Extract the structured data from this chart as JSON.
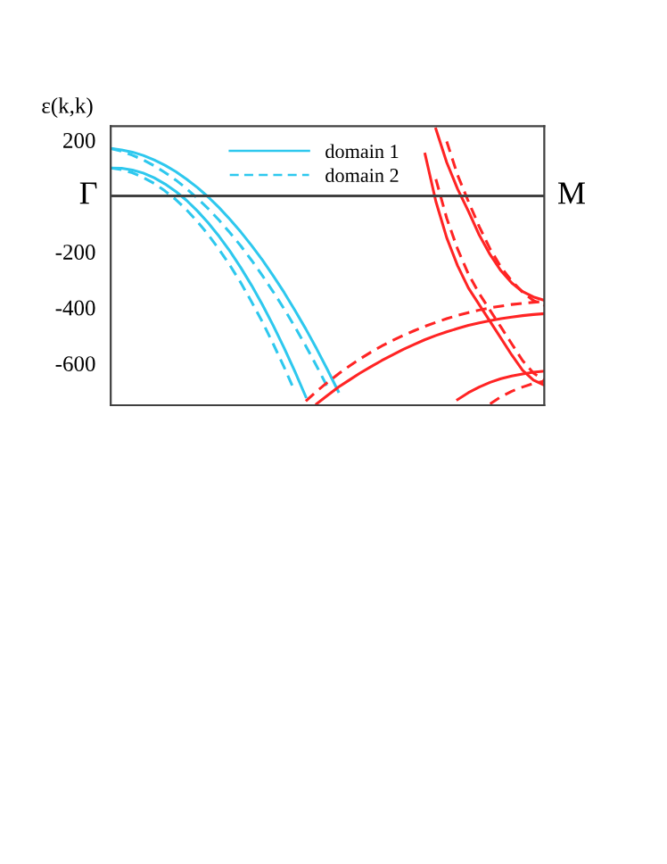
{
  "chart_data": {
    "type": "line",
    "ylabel": "ε(k,k)",
    "annotations": [
      "Γ",
      "M"
    ],
    "categories": [
      null,
      null,
      null,
      null,
      null,
      null,
      null,
      null,
      null,
      null,
      null,
      null,
      null,
      null,
      null,
      null,
      null,
      null,
      null,
      null,
      null,
      null,
      null,
      null,
      null,
      null,
      null,
      null,
      null,
      null,
      null,
      null,
      null,
      null,
      null,
      null,
      null,
      null,
      null,
      null,
      null
    ],
    "ylim": [
      -750,
      250
    ],
    "yticks": [
      200,
      -200,
      -400,
      -600
    ],
    "grid": false,
    "legend": "top",
    "tick_labels": "y",
    "ref_lines": [
      {
        "axis": "y",
        "value": 0,
        "color": "#404040"
      }
    ],
    "series": [
      {
        "name": "domain 1",
        "color": "#2ec8ee",
        "line_style": "solid",
        "values": [
          170,
          165,
          157,
          145,
          129,
          110,
          87,
          60,
          30,
          -4,
          -42,
          -84,
          -129,
          -178,
          -230,
          -287,
          -346,
          -410,
          -477,
          -548,
          -623,
          -701,
          null,
          null,
          null,
          null,
          null,
          null,
          null,
          null,
          null,
          null,
          null,
          null,
          null,
          null,
          null,
          null,
          null,
          null,
          null
        ]
      },
      {
        "name": "domain 2",
        "color": "#2ec8ee",
        "line_style": "dashed",
        "values": [
          170,
          160,
          146,
          129,
          108,
          84,
          57,
          26,
          -9,
          -46,
          -87,
          -132,
          -179,
          -231,
          -286,
          -344,
          -405,
          -470,
          -538,
          -610,
          -685,
          null,
          null,
          null,
          null,
          null,
          null,
          null,
          null,
          null,
          null,
          null,
          null,
          null,
          null,
          null,
          null,
          null,
          null,
          null,
          null
        ]
      },
      {
        "color": "#2ec8ee",
        "line_style": "solid",
        "values": [
          100,
          99,
          93,
          82,
          65,
          43,
          16,
          -16,
          -54,
          -97,
          -145,
          -198,
          -257,
          -321,
          -390,
          -465,
          -545,
          -630,
          -720,
          null,
          null,
          null,
          null,
          null,
          null,
          null,
          null,
          null,
          null,
          null,
          null,
          null,
          null,
          null,
          null,
          null,
          null,
          null,
          null,
          null,
          null
        ]
      },
      {
        "color": "#2ec8ee",
        "line_style": "dashed",
        "values": [
          100,
          94,
          83,
          66,
          45,
          18,
          -13,
          -50,
          -92,
          -139,
          -192,
          -249,
          -311,
          -380,
          -452,
          -531,
          -614,
          -702,
          null,
          null,
          null,
          null,
          null,
          null,
          null,
          null,
          null,
          null,
          null,
          null,
          null,
          null,
          null,
          null,
          null,
          null,
          null,
          null,
          null,
          null,
          null
        ]
      },
      {
        "color": "#ff2424",
        "line_style": "solid",
        "values": [
          null,
          null,
          null,
          null,
          null,
          null,
          null,
          null,
          null,
          null,
          null,
          null,
          null,
          null,
          null,
          null,
          null,
          null,
          null,
          -745,
          -715,
          -685,
          -660,
          -635,
          -612,
          -590,
          -570,
          -550,
          -532,
          -515,
          -500,
          -487,
          -475,
          -464,
          -455,
          -447,
          -440,
          -434,
          -429,
          -425,
          -422
        ]
      },
      {
        "color": "#ff2424",
        "line_style": "dashed",
        "values": [
          null,
          null,
          null,
          null,
          null,
          null,
          null,
          null,
          null,
          null,
          null,
          null,
          null,
          null,
          null,
          null,
          null,
          null,
          -735,
          -700,
          -668,
          -638,
          -610,
          -584,
          -560,
          -538,
          -518,
          -500,
          -483,
          -467,
          -453,
          -440,
          -428,
          -418,
          -409,
          -401,
          -395,
          -389,
          -385,
          -381,
          -378
        ]
      },
      {
        "color": "#ff2424",
        "line_style": "solid",
        "values": [
          null,
          null,
          null,
          null,
          null,
          null,
          null,
          null,
          null,
          null,
          null,
          null,
          null,
          null,
          null,
          null,
          null,
          null,
          null,
          null,
          null,
          null,
          null,
          null,
          null,
          null,
          null,
          null,
          null,
          null,
          240,
          120,
          25,
          -55,
          -140,
          -210,
          -268,
          -312,
          -343,
          -362,
          -374
        ]
      },
      {
        "color": "#ff2424",
        "line_style": "dashed",
        "values": [
          null,
          null,
          null,
          null,
          null,
          null,
          null,
          null,
          null,
          null,
          null,
          null,
          null,
          null,
          null,
          null,
          null,
          null,
          null,
          null,
          null,
          null,
          null,
          null,
          null,
          null,
          null,
          null,
          null,
          null,
          null,
          195,
          75,
          -20,
          -110,
          -190,
          -255,
          -305,
          -345,
          -375,
          -392
        ]
      },
      {
        "color": "#ff2424",
        "line_style": "solid",
        "values": [
          null,
          null,
          null,
          null,
          null,
          null,
          null,
          null,
          null,
          null,
          null,
          null,
          null,
          null,
          null,
          null,
          null,
          null,
          null,
          null,
          null,
          null,
          null,
          null,
          null,
          null,
          null,
          null,
          null,
          150,
          -20,
          -150,
          -250,
          -330,
          -390,
          -450,
          -510,
          -570,
          -625,
          -660,
          -678
        ]
      },
      {
        "color": "#ff2424",
        "line_style": "dashed",
        "values": [
          null,
          null,
          null,
          null,
          null,
          null,
          null,
          null,
          null,
          null,
          null,
          null,
          null,
          null,
          null,
          null,
          null,
          null,
          null,
          null,
          null,
          null,
          null,
          null,
          null,
          null,
          null,
          null,
          null,
          null,
          60,
          -80,
          -190,
          -280,
          -350,
          -410,
          -470,
          -530,
          -590,
          -635,
          -660
        ]
      },
      {
        "color": "#ff2424",
        "line_style": "solid",
        "values": [
          null,
          null,
          null,
          null,
          null,
          null,
          null,
          null,
          null,
          null,
          null,
          null,
          null,
          null,
          null,
          null,
          null,
          null,
          null,
          null,
          null,
          null,
          null,
          null,
          null,
          null,
          null,
          null,
          null,
          null,
          null,
          null,
          -730,
          -705,
          -685,
          -668,
          -655,
          -645,
          -638,
          -632,
          -628
        ]
      },
      {
        "color": "#ff2424",
        "line_style": "dashed",
        "values": [
          null,
          null,
          null,
          null,
          null,
          null,
          null,
          null,
          null,
          null,
          null,
          null,
          null,
          null,
          null,
          null,
          null,
          null,
          null,
          null,
          null,
          null,
          null,
          null,
          null,
          null,
          null,
          null,
          null,
          null,
          null,
          null,
          null,
          null,
          null,
          -745,
          -720,
          -700,
          -685,
          -672,
          -664
        ]
      }
    ]
  }
}
